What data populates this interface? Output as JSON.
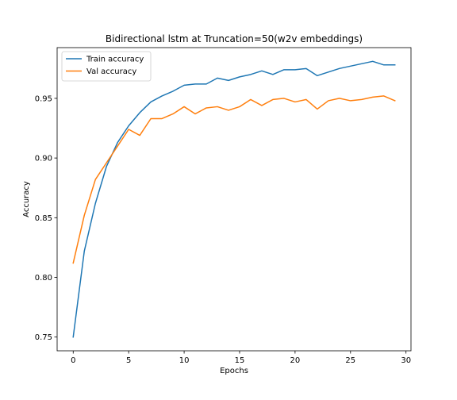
{
  "chart_data": {
    "type": "line",
    "title": "Bidirectional lstm at Truncation=50(w2v embeddings)",
    "xlabel": "Epochs",
    "ylabel": "Accuracy",
    "xlim": [
      -1.45,
      30.45
    ],
    "ylim": [
      0.7385,
      0.9925
    ],
    "xticks": [
      0,
      5,
      10,
      15,
      20,
      25,
      30
    ],
    "xtick_labels": [
      "0",
      "5",
      "10",
      "15",
      "20",
      "25",
      "30"
    ],
    "yticks": [
      0.75,
      0.8,
      0.85,
      0.9,
      0.95
    ],
    "ytick_labels": [
      "0.75",
      "0.80",
      "0.85",
      "0.90",
      "0.95"
    ],
    "grid": false,
    "legend_position": "top-left",
    "x": [
      0,
      1,
      2,
      3,
      4,
      5,
      6,
      7,
      8,
      9,
      10,
      11,
      12,
      13,
      14,
      15,
      16,
      17,
      18,
      19,
      20,
      21,
      22,
      23,
      24,
      25,
      26,
      27,
      28,
      29
    ],
    "series": [
      {
        "name": "Train accuracy",
        "color": "#1f77b4",
        "values": [
          0.75,
          0.822,
          0.862,
          0.893,
          0.913,
          0.927,
          0.938,
          0.947,
          0.952,
          0.956,
          0.961,
          0.962,
          0.962,
          0.967,
          0.965,
          0.968,
          0.97,
          0.973,
          0.97,
          0.974,
          0.974,
          0.975,
          0.969,
          0.972,
          0.975,
          0.977,
          0.979,
          0.981,
          0.978,
          0.978
        ]
      },
      {
        "name": "Val accuracy",
        "color": "#ff7f0e",
        "values": [
          0.812,
          0.852,
          0.882,
          0.896,
          0.91,
          0.924,
          0.919,
          0.933,
          0.933,
          0.937,
          0.943,
          0.937,
          0.942,
          0.943,
          0.94,
          0.943,
          0.949,
          0.944,
          0.949,
          0.95,
          0.947,
          0.949,
          0.941,
          0.948,
          0.95,
          0.948,
          0.949,
          0.951,
          0.952,
          0.948
        ]
      }
    ]
  }
}
